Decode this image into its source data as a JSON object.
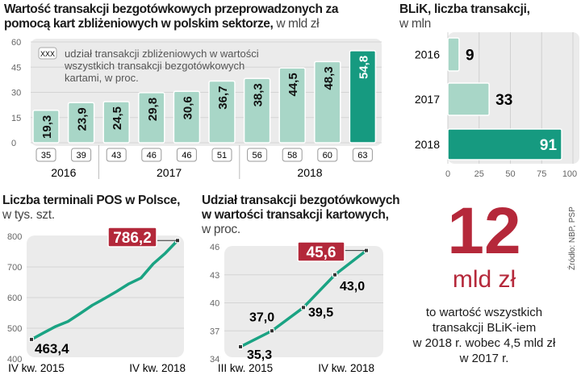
{
  "colors": {
    "light": "#a8d6c7",
    "dark": "#169a80",
    "red": "#b3283a",
    "panel": "#ebebeb",
    "line": "#1aa383"
  },
  "chart_data": [
    {
      "type": "bar",
      "title": "Wartość transakcji bezgotówkowych przeprowadzonych za pomocą kart zbliżeniowych w polskim sektorze,",
      "unit": "w mld zł",
      "legend_box": "XXX",
      "legend_text": [
        "udział transakcji zbliżeniowych w wartości",
        "wszystkich transakcji bezgotówkowych",
        "kartami, w proc."
      ],
      "ylim": [
        0,
        60
      ],
      "yticks": [
        "0",
        "15",
        "30",
        "45",
        "60"
      ],
      "values": [
        19.3,
        23.9,
        24.5,
        29.8,
        30.6,
        36.7,
        38.3,
        44.5,
        48.3,
        54.8
      ],
      "value_labels": [
        "19,3",
        "23,9",
        "24,5",
        "29,8",
        "30,6",
        "36,7",
        "38,3",
        "44,5",
        "48,3",
        "54,8"
      ],
      "shares": [
        "35",
        "39",
        "43",
        "46",
        "46",
        "51",
        "56",
        "58",
        "60",
        "63"
      ],
      "years": [
        {
          "label": "2016",
          "bars": 2
        },
        {
          "label": "2017",
          "bars": 4
        },
        {
          "label": "2018",
          "bars": 4
        }
      ],
      "highlight_index": 9
    },
    {
      "type": "bar",
      "orientation": "horizontal",
      "title": "BLiK, liczba transakcji,",
      "unit": "w mln",
      "categories": [
        "2016",
        "2017",
        "2018"
      ],
      "values": [
        9,
        33,
        91
      ],
      "value_labels": [
        "9",
        "33",
        "91"
      ],
      "xlim": [
        0,
        100
      ],
      "xticks": [
        "0",
        "25",
        "50",
        "75",
        "100"
      ],
      "highlight_index": 2
    },
    {
      "type": "line",
      "title": "Liczba terminali POS w Polsce,",
      "unit": "w tys. szt.",
      "ylim": [
        400,
        800
      ],
      "yticks": [
        "400",
        "500",
        "600",
        "700",
        "800"
      ],
      "xlabels": [
        "IV kw. 2015",
        "IV kw. 2018"
      ],
      "values": [
        463.4,
        485,
        506,
        522,
        548,
        575,
        597,
        620,
        645,
        664,
        710,
        745,
        786.2
      ],
      "start_label": "463,4",
      "end_label": "786,2"
    },
    {
      "type": "line",
      "title": [
        "Udział transakcji bezgotówkowych",
        "w wartości transakcji kartowych,"
      ],
      "unit": "w proc.",
      "ylim": [
        34,
        46
      ],
      "yticks": [
        "34",
        "37",
        "40",
        "43",
        "46"
      ],
      "xlabels": [
        "III kw. 2015",
        "IV kw. 2018"
      ],
      "values": [
        35.3,
        37.0,
        39.5,
        43.0,
        45.6
      ],
      "value_labels": [
        "35,3",
        "37,0",
        "39,5",
        "43,0",
        "45,6"
      ]
    }
  ],
  "highlight": {
    "number": "12",
    "unit": "mld zł",
    "lines": [
      "to wartość wszystkich",
      "transakcji BLiK-iem",
      "w 2018 r. wobec 4,5 mld zł",
      "w 2017 r."
    ]
  },
  "source": "Źródło: NBP, PSP"
}
